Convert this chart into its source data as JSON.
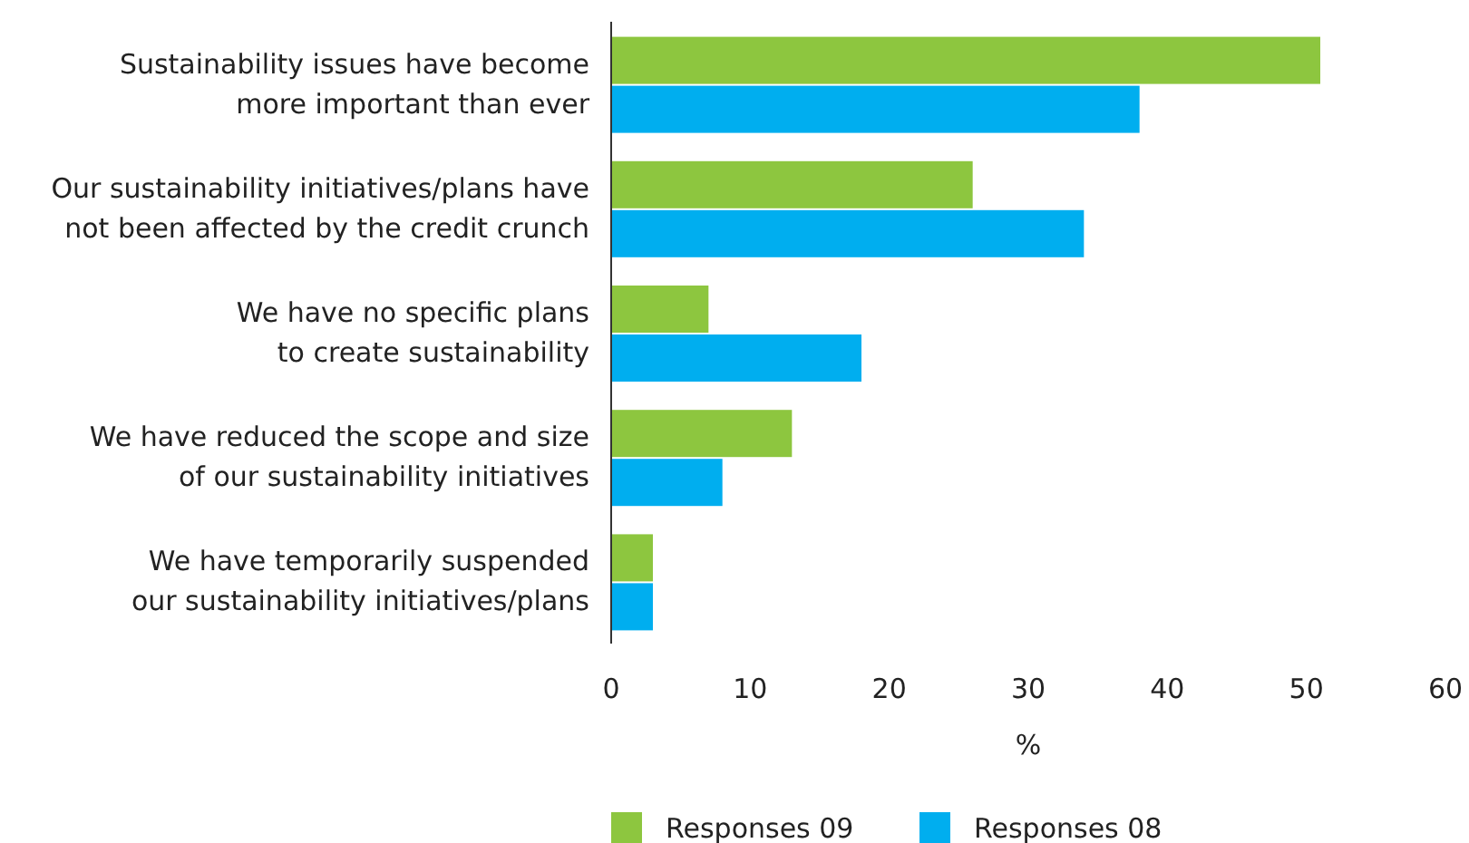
{
  "chart_data": {
    "type": "bar",
    "orientation": "horizontal",
    "xlabel": "%",
    "categories": [
      "Sustainability issues have become\nmore important than ever",
      "Our sustainability initiatives/plans have\nnot been affected by the credit crunch",
      "We have no specific plans\nto create sustainability",
      "We have reduced the scope and size\nof our sustainability initiatives",
      "We have temporarily suspended\nour sustainability initiatives/plans"
    ],
    "series": [
      {
        "name": "Responses 09",
        "color": "#8dc63f",
        "values": [
          51,
          26,
          7,
          13,
          3
        ]
      },
      {
        "name": "Responses 08",
        "color": "#00aeef",
        "values": [
          38,
          34,
          18,
          8,
          3
        ]
      }
    ],
    "xlim": [
      0,
      60
    ],
    "xticks": [
      0,
      10,
      20,
      30,
      40,
      50,
      60
    ],
    "grid": false,
    "legend": "bottom"
  }
}
